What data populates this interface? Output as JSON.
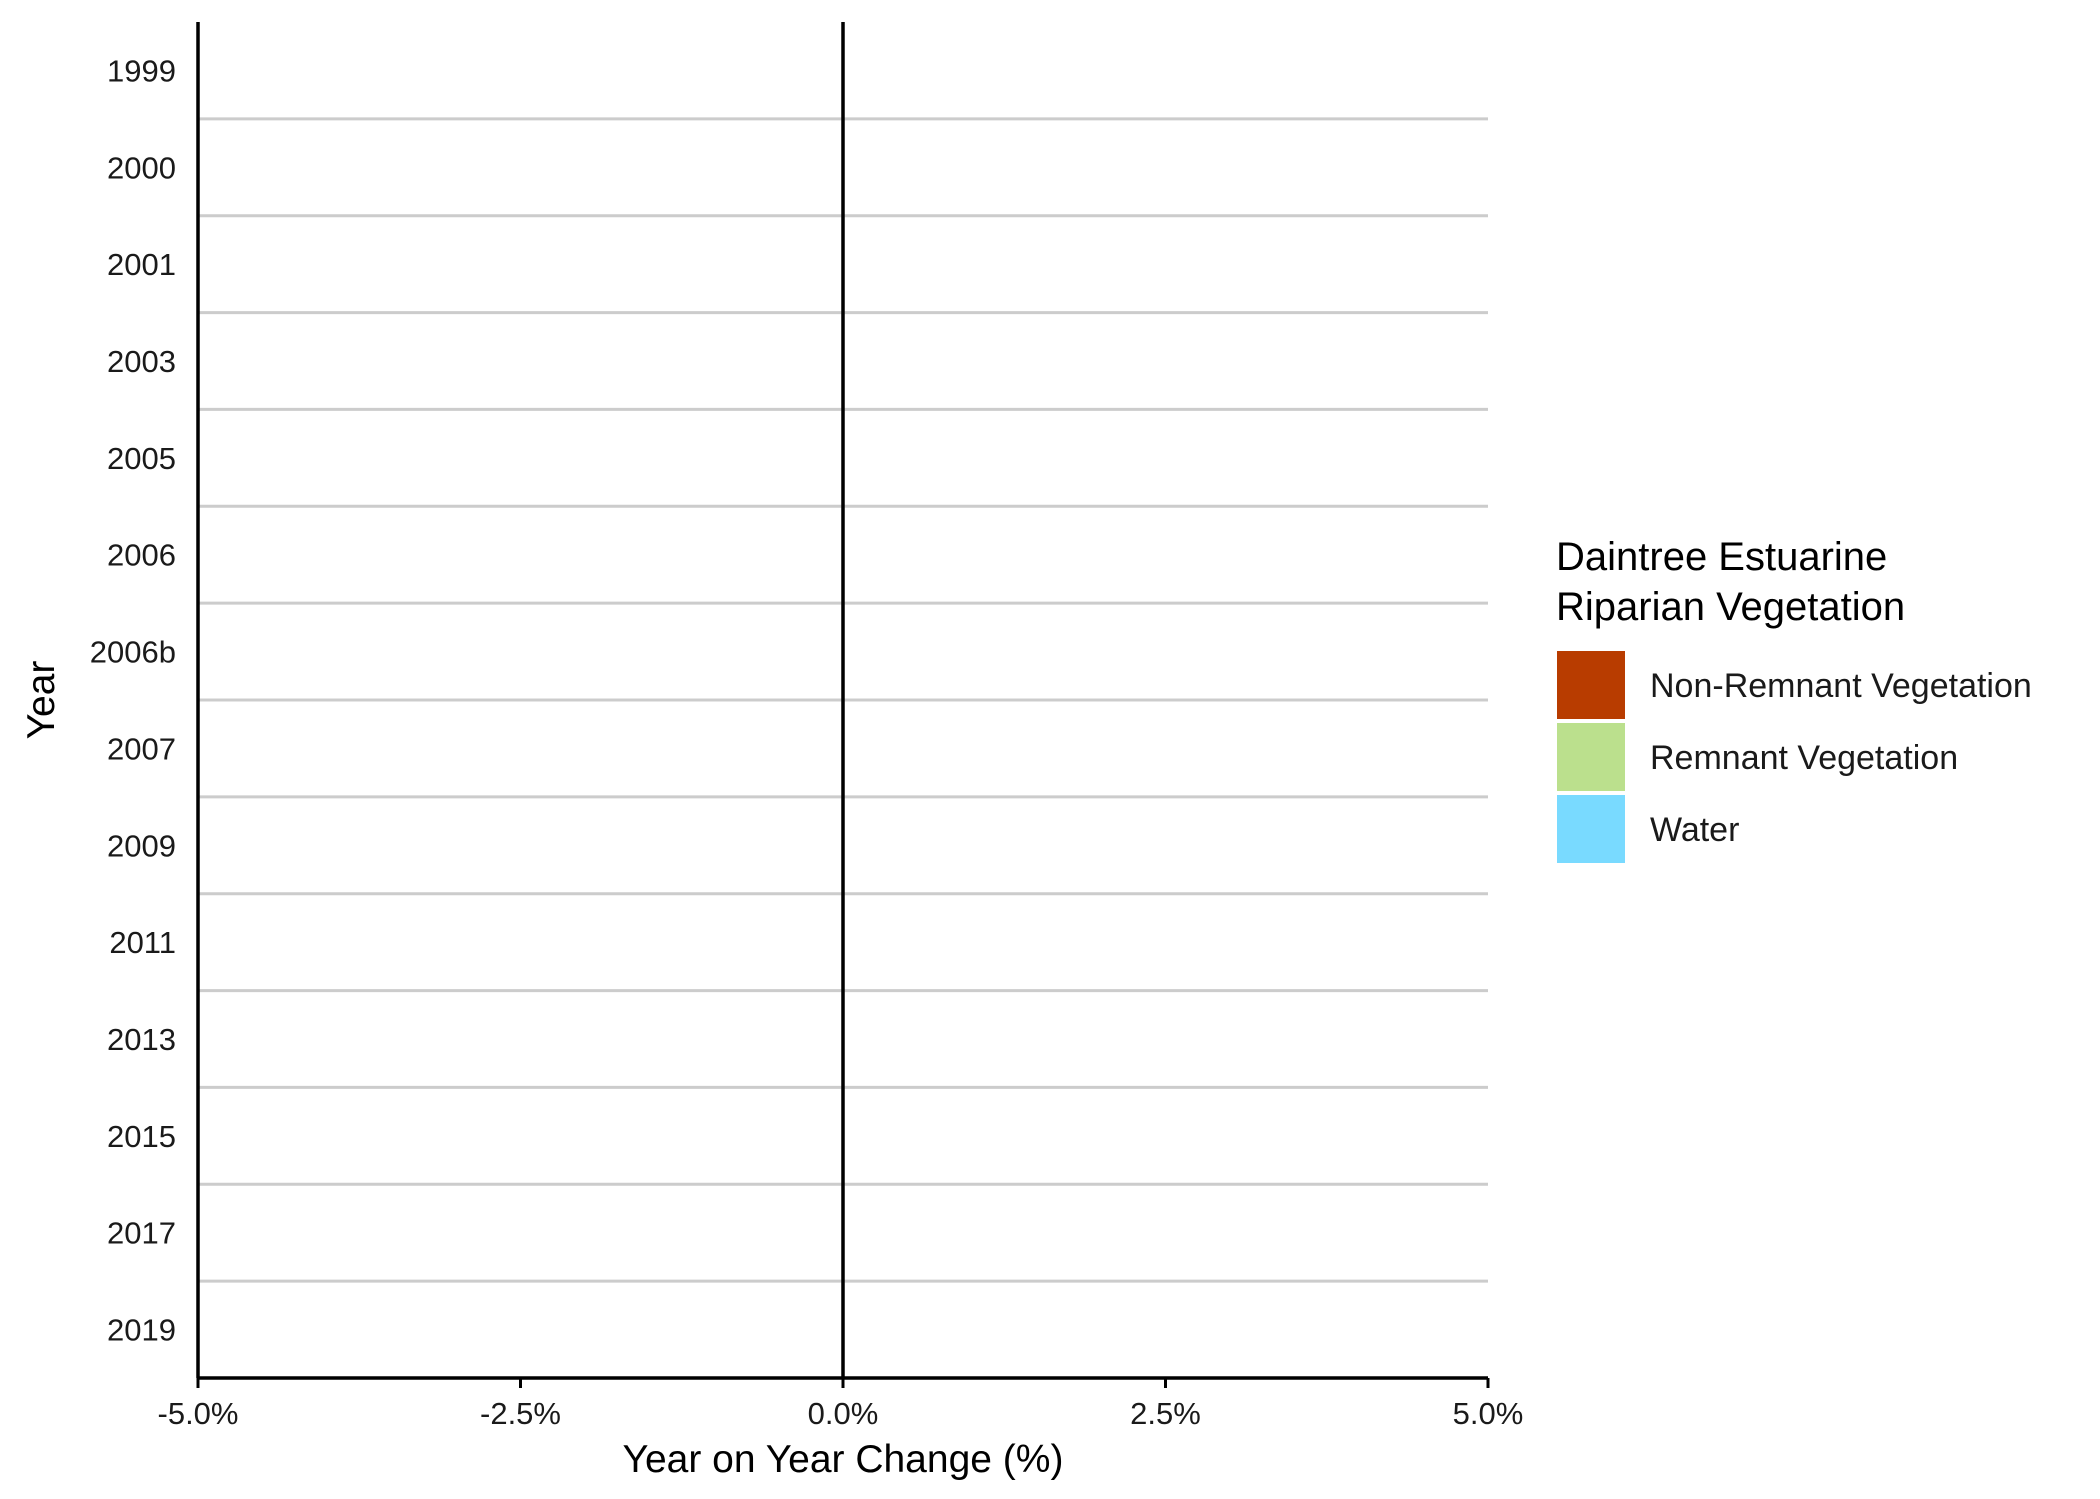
{
  "chart_data": {
    "type": "bar",
    "orientation": "horizontal",
    "categories": [
      "1999",
      "2000",
      "2001",
      "2003",
      "2005",
      "2006",
      "2006b",
      "2007",
      "2009",
      "2011",
      "2013",
      "2015",
      "2017",
      "2019"
    ],
    "series": [
      {
        "name": "Non-Remnant Vegetation",
        "color": "#b83c00",
        "values": [
          null,
          null,
          null,
          null,
          null,
          null,
          null,
          null,
          null,
          null,
          null,
          null,
          null,
          null
        ]
      },
      {
        "name": "Remnant Vegetation",
        "color": "#bbe08d",
        "values": [
          null,
          null,
          null,
          null,
          null,
          null,
          null,
          null,
          null,
          null,
          null,
          null,
          null,
          null
        ]
      },
      {
        "name": "Water",
        "color": "#79daff",
        "values": [
          null,
          null,
          null,
          null,
          null,
          null,
          null,
          null,
          null,
          null,
          null,
          null,
          null,
          null
        ]
      }
    ],
    "xlim": [
      -5.0,
      5.0
    ],
    "x_ticks": [
      -5.0,
      -2.5,
      0.0,
      2.5,
      5.0
    ],
    "x_tick_labels": [
      "-5.0%",
      "-2.5%",
      "0.0%",
      "2.5%",
      "5.0%"
    ],
    "xlabel": "Year on Year Change (%)",
    "ylabel": "Year",
    "legend": {
      "title_lines": [
        "Daintree Estuarine",
        "Riparian Vegetation"
      ],
      "placement": "right"
    },
    "grid": "horizontal separators between categories",
    "zero_line": true
  }
}
